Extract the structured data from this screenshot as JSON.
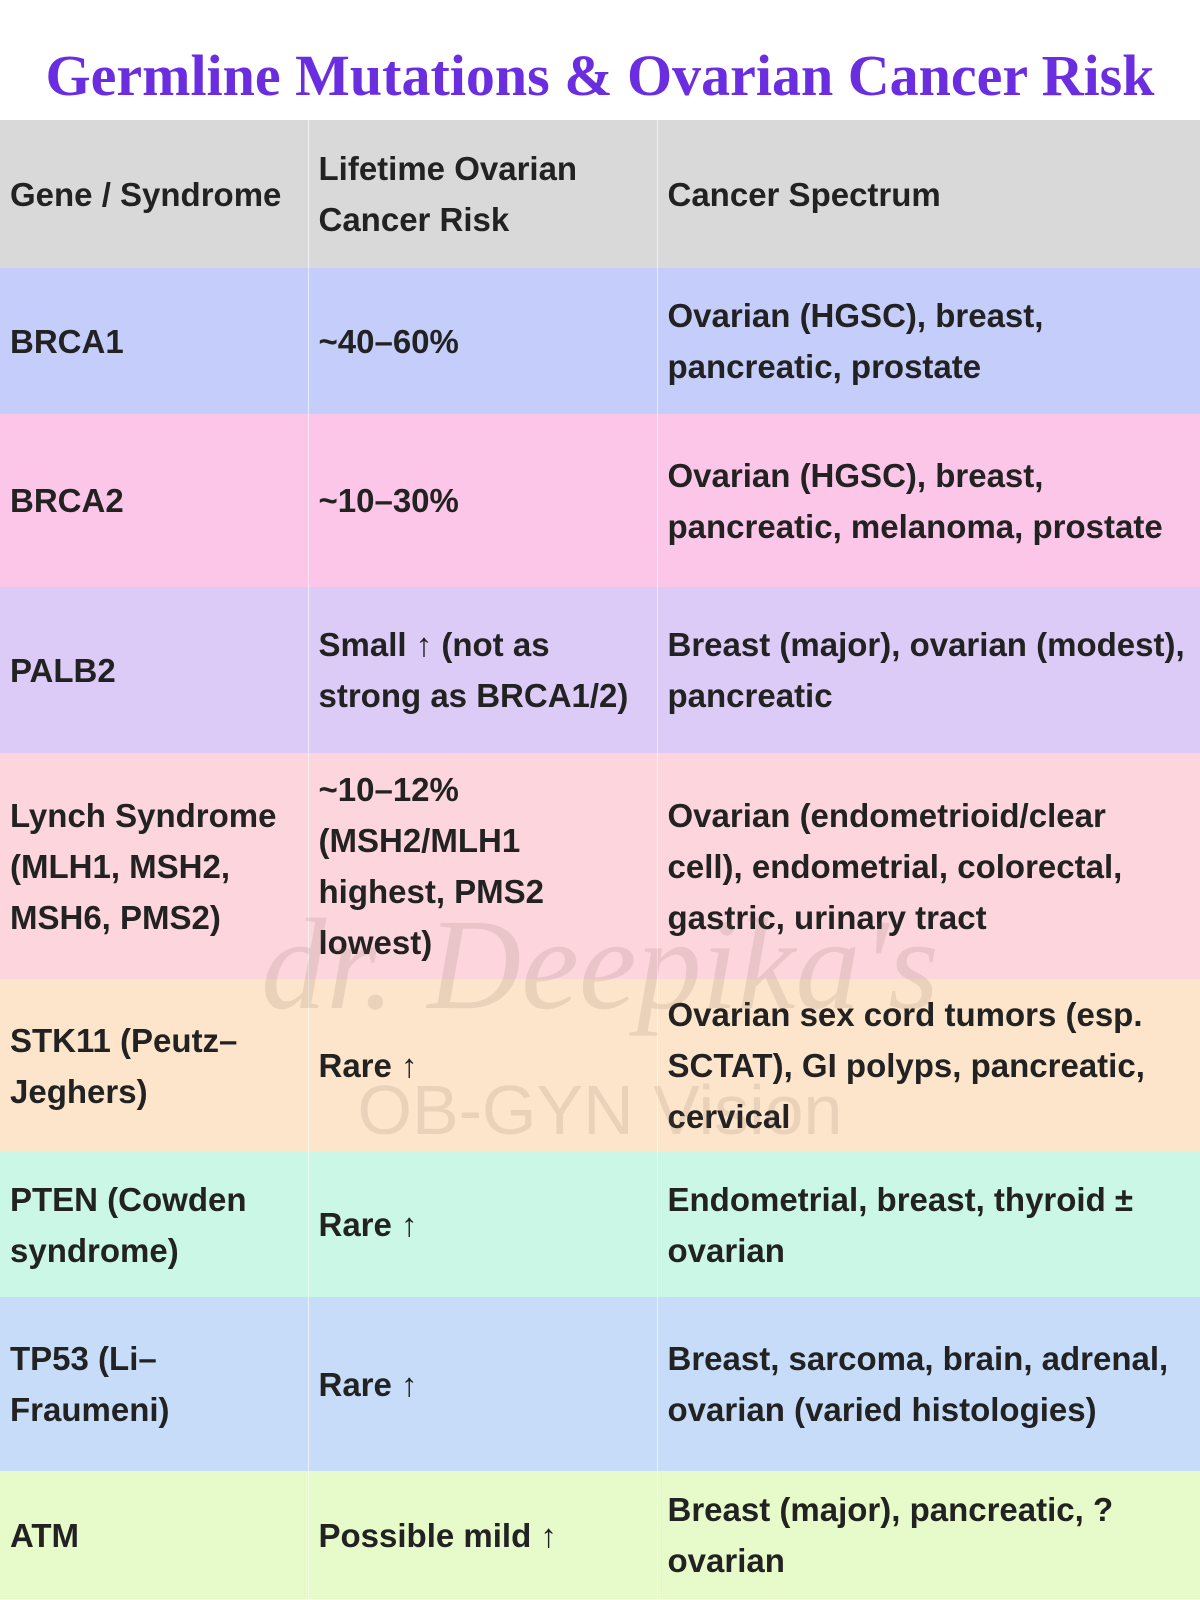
{
  "header": {
    "title": "Germline Mutations & Ovarian Cancer Risk"
  },
  "table": {
    "columns": [
      "Gene / Syndrome",
      "Lifetime Ovarian Cancer Risk",
      "Cancer Spectrum"
    ],
    "rows": [
      [
        "BRCA1",
        "~40–60%",
        "Ovarian (HGSC), breast, pancreatic, prostate"
      ],
      [
        "BRCA2",
        "~10–30%",
        "Ovarian (HGSC), breast, pancreatic, melanoma, prostate"
      ],
      [
        "PALB2",
        "Small ↑ (not as strong as BRCA1/2)",
        "Breast (major), ovarian (modest), pancreatic"
      ],
      [
        "Lynch Syndrome (MLH1, MSH2, MSH6, PMS2)",
        "~10–12% (MSH2/MLH1 highest, PMS2 lowest)",
        "Ovarian (endometrioid/clear cell), endometrial, colorectal, gastric, urinary tract"
      ],
      [
        "STK11 (Peutz–Jeghers)",
        "Rare ↑",
        "Ovarian sex cord tumors (esp. SCTAT), GI polyps, pancreatic, cervical"
      ],
      [
        "PTEN (Cowden syndrome)",
        "Rare ↑",
        "Endometrial, breast, thyroid ± ovarian"
      ],
      [
        "TP53 (Li–Fraumeni)",
        "Rare ↑",
        "Breast, sarcoma, brain, adrenal, ovarian (varied histologies)"
      ],
      [
        "ATM",
        "Possible mild ↑",
        "Breast (major), pancreatic, ? ovarian"
      ]
    ]
  },
  "watermark": {
    "lines": [
      "dr. Deepika's",
      "OB-GYN Vision"
    ]
  }
}
